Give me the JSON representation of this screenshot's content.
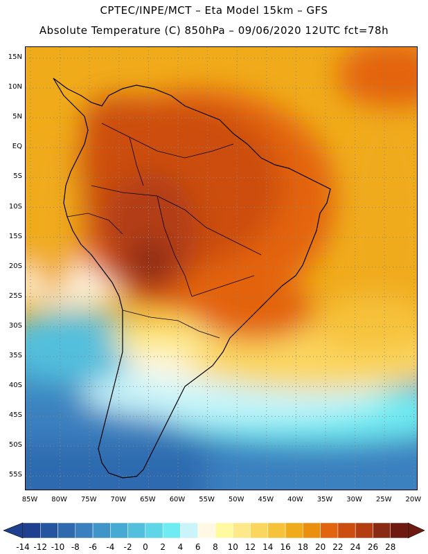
{
  "title": {
    "line1": "CPTEC/INPE/MCT –  Eta Model 15km – GFS",
    "line2": "Absolute Temperature (C) 850hPa – 09/06/2020 12UTC fct=78h"
  },
  "axes": {
    "lat_labels": [
      "15N",
      "10N",
      "5N",
      "EQ",
      "5S",
      "10S",
      "15S",
      "20S",
      "25S",
      "30S",
      "35S",
      "40S",
      "45S",
      "50S",
      "55S"
    ],
    "lon_labels": [
      "85W",
      "80W",
      "75W",
      "70W",
      "65W",
      "60W",
      "55W",
      "50W",
      "45W",
      "40W",
      "35W",
      "30W",
      "25W",
      "20W"
    ]
  },
  "colorbar": {
    "labels": [
      "-14",
      "-12",
      "-10",
      "-8",
      "-6",
      "-4",
      "-2",
      "0",
      "2",
      "4",
      "6",
      "8",
      "10",
      "12",
      "14",
      "16",
      "18",
      "20",
      "22",
      "24",
      "26",
      "28"
    ],
    "colors": [
      "#1f3f8f",
      "#25559f",
      "#2f6aaf",
      "#3a80bf",
      "#3f95c8",
      "#47aad2",
      "#52bfdd",
      "#5fd6e8",
      "#6fecf2",
      "#c8f4fa",
      "#fff8e4",
      "#fffaa0",
      "#fde98a",
      "#fbd65e",
      "#f6c23a",
      "#f0ab1a",
      "#eb8f10",
      "#e3640f",
      "#cc4d10",
      "#b23e12",
      "#8a2a12",
      "#6e1a10"
    ]
  }
}
